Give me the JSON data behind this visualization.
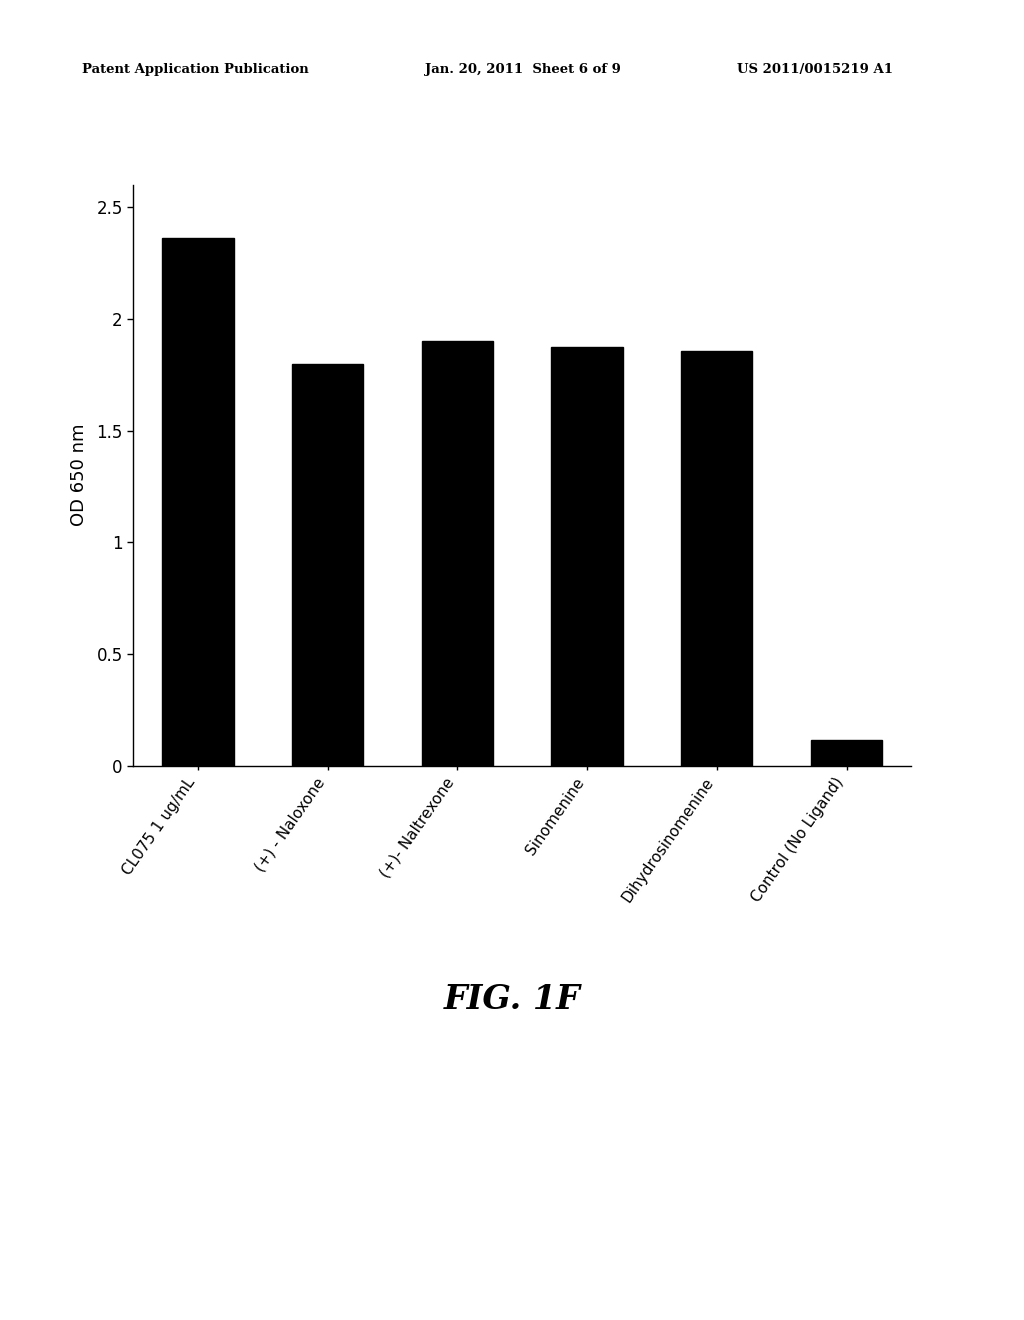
{
  "categories": [
    "CL075 1 ug/mL",
    "(+) - Naloxone",
    "(+)- Naltrexone",
    "Sinomenine",
    "Dihydrosinomenine",
    "Control (No Ligand)"
  ],
  "values": [
    2.36,
    1.8,
    1.9,
    1.875,
    1.855,
    0.115
  ],
  "bar_color": "#000000",
  "background_color": "#ffffff",
  "ylabel": "OD 650 nm",
  "ylim": [
    0,
    2.6
  ],
  "yticks": [
    0,
    0.5,
    1.0,
    1.5,
    2.0,
    2.5
  ],
  "ytick_labels": [
    "0",
    "0.5",
    "1",
    "1.5",
    "2",
    "2.5"
  ],
  "figure_caption": "FIG. 1F",
  "header_left": "Patent Application Publication",
  "header_mid": "Jan. 20, 2011  Sheet 6 of 9",
  "header_right": "US 2011/0015219 A1",
  "bar_width": 0.55
}
